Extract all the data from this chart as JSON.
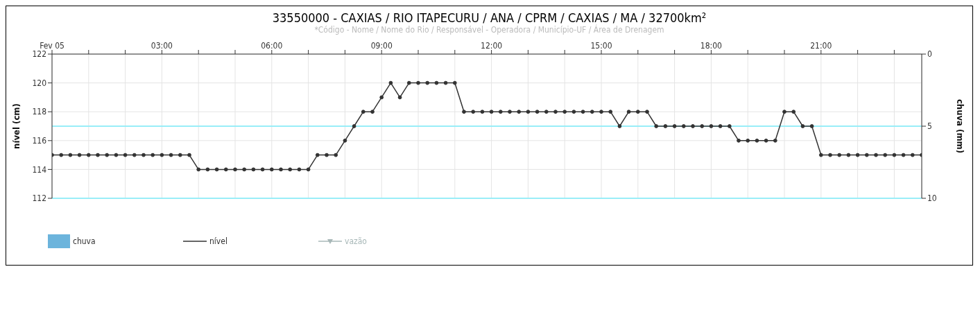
{
  "chart_data": {
    "type": "line",
    "title": "33550000 - CAXIAS / RIO ITAPECURU / ANA / CPRM / CAXIAS / MA / 32700km²",
    "subtitle": "*Código - Nome / Nome do Rio / Responsável - Operadora / Município-UF / Área de Drenagem",
    "ylabel": "nível (cm)",
    "y2label": "chuva (mm)",
    "x": [
      0,
      0.25,
      0.5,
      0.75,
      1,
      1.25,
      1.5,
      1.75,
      2,
      2.25,
      2.5,
      2.75,
      3,
      3.25,
      3.5,
      3.75,
      4,
      4.25,
      4.5,
      4.75,
      5,
      5.25,
      5.5,
      5.75,
      6,
      6.25,
      6.5,
      6.75,
      7,
      7.25,
      7.5,
      7.75,
      8,
      8.25,
      8.5,
      8.75,
      9,
      9.25,
      9.5,
      9.75,
      10,
      10.25,
      10.5,
      10.75,
      11,
      11.25,
      11.5,
      11.75,
      12,
      12.25,
      12.5,
      12.75,
      13,
      13.25,
      13.5,
      13.75,
      14,
      14.25,
      14.5,
      14.75,
      15,
      15.25,
      15.5,
      15.75,
      16,
      16.25,
      16.5,
      16.75,
      17,
      17.25,
      17.5,
      17.75,
      18,
      18.25,
      18.5,
      18.75,
      19,
      19.25,
      19.5,
      19.75,
      20,
      20.25,
      20.5,
      20.75,
      21,
      21.25,
      21.5,
      21.75,
      22,
      22.25,
      22.5,
      22.75,
      23,
      23.25,
      23.5,
      23.75
    ],
    "series": [
      {
        "name": "chuva",
        "type": "bar",
        "color": "#6cb4dc",
        "values": [
          null,
          null,
          null,
          null,
          null,
          null,
          null,
          null,
          null,
          null,
          null,
          null,
          null,
          null,
          null,
          null,
          null,
          null,
          null,
          null,
          null,
          null,
          null,
          null,
          null,
          null,
          null,
          null,
          null,
          null,
          null,
          null,
          null,
          null,
          null,
          null,
          null,
          null,
          null,
          null,
          null,
          null,
          null,
          null,
          null,
          null,
          null,
          null,
          null,
          null,
          null,
          null,
          null,
          null,
          null,
          null,
          null,
          null,
          null,
          null,
          null,
          null,
          null,
          null,
          null,
          null,
          null,
          null,
          null,
          null,
          null,
          null,
          null,
          null,
          null,
          null,
          null,
          null,
          null,
          null,
          null,
          null,
          null,
          null,
          null,
          null,
          null,
          null,
          null,
          null,
          null,
          null,
          null,
          null,
          null,
          null
        ]
      },
      {
        "name": "nível",
        "color": "#333333",
        "marker": "circle",
        "values": [
          115,
          115,
          115,
          115,
          115,
          115,
          115,
          115,
          115,
          115,
          115,
          115,
          115,
          115,
          115,
          115,
          114,
          114,
          114,
          114,
          114,
          114,
          114,
          114,
          114,
          114,
          114,
          114,
          114,
          115,
          115,
          115,
          116,
          117,
          118,
          118,
          119,
          120,
          119,
          120,
          120,
          120,
          120,
          120,
          120,
          118,
          118,
          118,
          118,
          118,
          118,
          118,
          118,
          118,
          118,
          118,
          118,
          118,
          118,
          118,
          118,
          118,
          117,
          118,
          118,
          118,
          117,
          117,
          117,
          117,
          117,
          117,
          117,
          117,
          117,
          116,
          116,
          116,
          116,
          116,
          118,
          118,
          117,
          117,
          115,
          115,
          115,
          115,
          115,
          115,
          115,
          115,
          115,
          115,
          115,
          115
        ]
      },
      {
        "name": "vazão",
        "type": "line",
        "color": "#a8b8b8",
        "marker": "triangle",
        "values": [
          null,
          null,
          null,
          null,
          null,
          null,
          null,
          null,
          null,
          null,
          null,
          null,
          null,
          null,
          null,
          null,
          null,
          null,
          null,
          null,
          null,
          null,
          null,
          null,
          null,
          null,
          null,
          null,
          null,
          null,
          null,
          null,
          null,
          null,
          null,
          null,
          null,
          null,
          null,
          null,
          null,
          null,
          null,
          null,
          null,
          null,
          null,
          null,
          null,
          null,
          null,
          null,
          null,
          null,
          null,
          null,
          null,
          null,
          null,
          null,
          null,
          null,
          null,
          null,
          null,
          null,
          null,
          null,
          null,
          null,
          null,
          null,
          null,
          null,
          null,
          null,
          null,
          null,
          null,
          null,
          null,
          null,
          null,
          null,
          null,
          null,
          null,
          null,
          null,
          null,
          null,
          null,
          null,
          null,
          null,
          null
        ]
      }
    ],
    "xlim": [
      0,
      23.75
    ],
    "xticks": [
      {
        "value": 0,
        "label": "Fev 05"
      },
      {
        "value": 1,
        "label": null
      },
      {
        "value": 2,
        "label": null
      },
      {
        "value": 3,
        "label": "03:00"
      },
      {
        "value": 4,
        "label": null
      },
      {
        "value": 5,
        "label": null
      },
      {
        "value": 6,
        "label": "06:00"
      },
      {
        "value": 7,
        "label": null
      },
      {
        "value": 8,
        "label": null
      },
      {
        "value": 9,
        "label": "09:00"
      },
      {
        "value": 10,
        "label": null
      },
      {
        "value": 11,
        "label": null
      },
      {
        "value": 12,
        "label": "12:00"
      },
      {
        "value": 13,
        "label": null
      },
      {
        "value": 14,
        "label": null
      },
      {
        "value": 15,
        "label": "15:00"
      },
      {
        "value": 16,
        "label": null
      },
      {
        "value": 17,
        "label": null
      },
      {
        "value": 18,
        "label": "18:00"
      },
      {
        "value": 19,
        "label": null
      },
      {
        "value": 20,
        "label": null
      },
      {
        "value": 21,
        "label": "21:00"
      },
      {
        "value": 22,
        "label": null
      },
      {
        "value": 23,
        "label": null
      }
    ],
    "ylim": [
      112,
      122
    ],
    "yticks": [
      112,
      114,
      116,
      118,
      120,
      122
    ],
    "y2lim": [
      10,
      0
    ],
    "y2ticks": [
      0,
      5,
      10
    ],
    "ref_lines": [
      {
        "axis": "y",
        "value": 117,
        "color": "#99eef8"
      },
      {
        "axis": "y",
        "value": 112,
        "color": "#99eef8"
      }
    ],
    "grid": true,
    "legend": "bottom left"
  }
}
